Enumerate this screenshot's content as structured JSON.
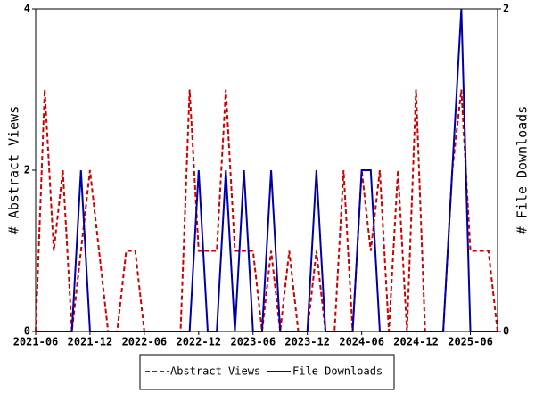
{
  "chart_data": {
    "type": "line",
    "categories": [
      "2021-06",
      null,
      null,
      null,
      null,
      null,
      "2021-12",
      null,
      null,
      null,
      null,
      null,
      "2022-06",
      null,
      null,
      null,
      null,
      null,
      "2022-12",
      null,
      null,
      null,
      null,
      null,
      "2023-06",
      null,
      null,
      null,
      null,
      null,
      "2023-12",
      null,
      null,
      null,
      null,
      null,
      "2024-06",
      null,
      null,
      null,
      null,
      null,
      "2024-12",
      null,
      null,
      null,
      null,
      null,
      "2025-06",
      null,
      null,
      null
    ],
    "series": [
      {
        "name": "Abstract Views",
        "color": "#cc0000",
        "dash": true,
        "values": [
          0,
          3,
          1,
          2,
          0,
          1,
          2,
          1,
          0,
          0,
          1,
          1,
          0,
          0,
          0,
          0,
          0,
          3,
          1,
          1,
          1,
          3,
          1,
          1,
          1,
          0,
          1,
          0,
          1,
          0,
          0,
          1,
          0,
          0,
          2,
          0,
          2,
          1,
          2,
          0,
          2,
          0,
          3,
          0,
          0,
          0,
          2,
          3,
          1,
          1,
          1,
          0
        ]
      },
      {
        "name": "File Downloads",
        "color": "#0000aa",
        "axis": "y2",
        "values": [
          0,
          0,
          0,
          0,
          0,
          1,
          0,
          0,
          0,
          0,
          0,
          0,
          0,
          0,
          0,
          0,
          0,
          0,
          1,
          0,
          0,
          1,
          0,
          1,
          0,
          0,
          1,
          0,
          0,
          0,
          0,
          1,
          0,
          0,
          0,
          0,
          1,
          1,
          0,
          0,
          0,
          0,
          0,
          0,
          0,
          0,
          1,
          2,
          0,
          0,
          0,
          0
        ]
      }
    ],
    "ylabel": "# Abstract Views",
    "y2label": "# File Downloads",
    "ylim": [
      0,
      4
    ],
    "yticks": [
      0,
      2,
      4
    ],
    "y2lim": [
      0,
      2
    ],
    "y2ticks": [
      0,
      2
    ],
    "grid": false,
    "legend": "bottom"
  }
}
